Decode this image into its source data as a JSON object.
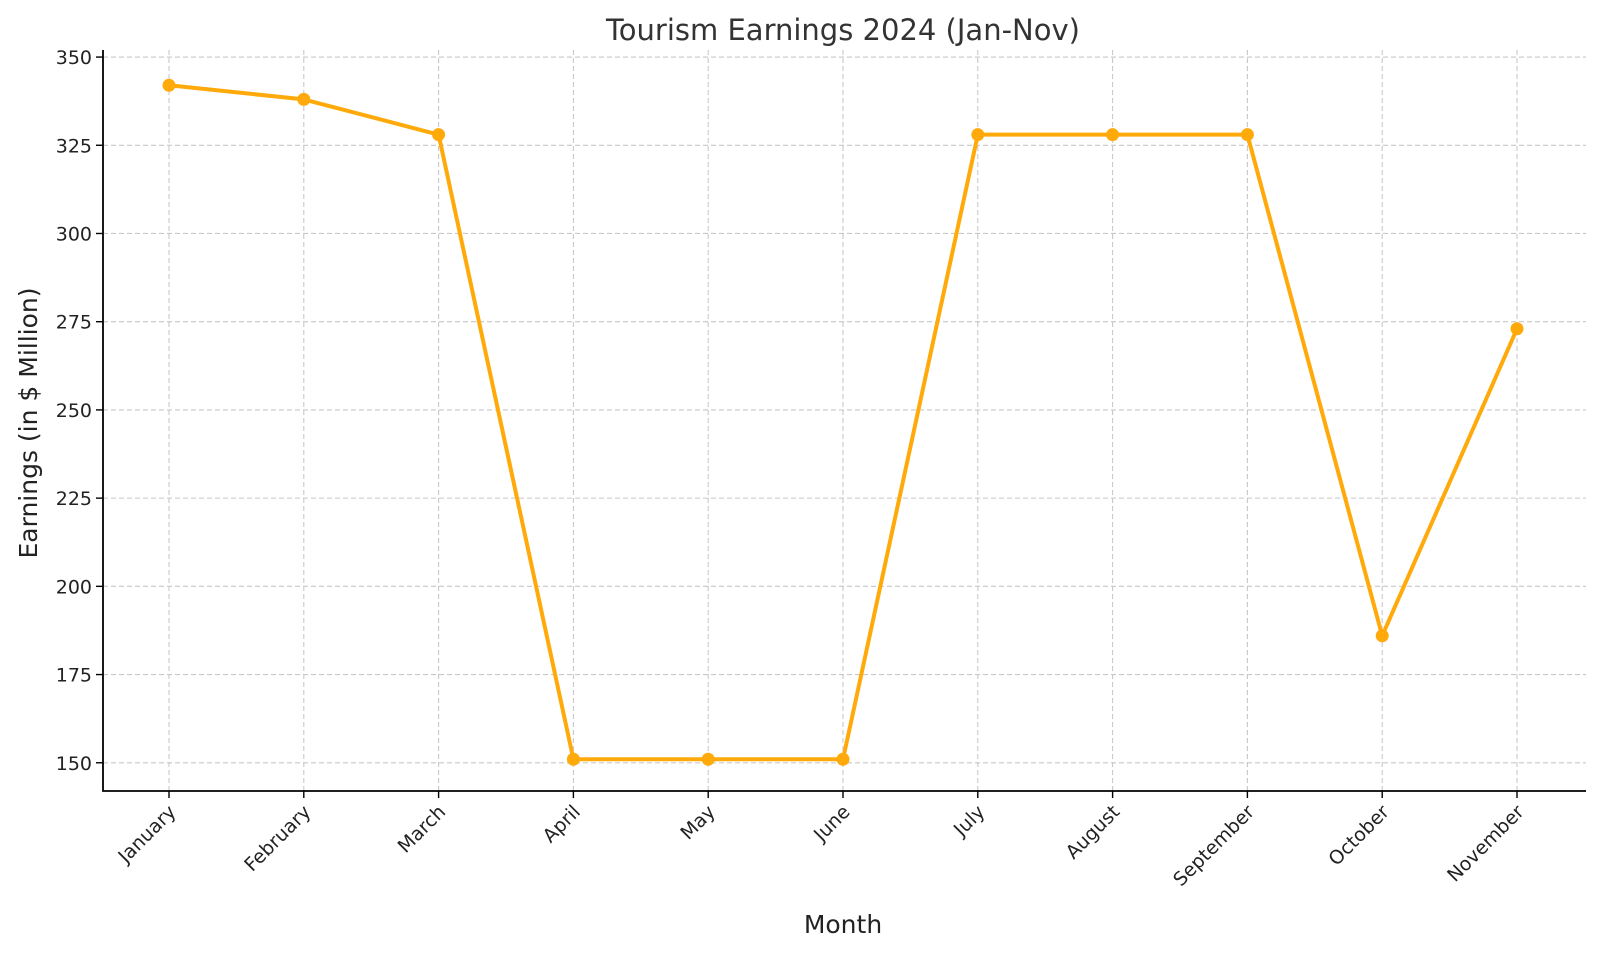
{
  "chart_data": {
    "type": "line",
    "title": "Tourism Earnings 2024 (Jan-Nov)",
    "xlabel": "Month",
    "ylabel": "Earnings (in $ Million)",
    "categories": [
      "January",
      "February",
      "March",
      "April",
      "May",
      "June",
      "July",
      "August",
      "September",
      "October",
      "November"
    ],
    "series": [
      {
        "values": [
          342,
          338,
          328,
          151,
          151,
          151,
          328,
          328,
          328,
          186,
          273
        ],
        "color": "#FFAA0A",
        "marker": "circle"
      }
    ],
    "ylim": [
      142,
      352
    ],
    "yticks": [
      150,
      175,
      200,
      225,
      250,
      275,
      300,
      325,
      350
    ],
    "grid": true,
    "legend": "none"
  }
}
